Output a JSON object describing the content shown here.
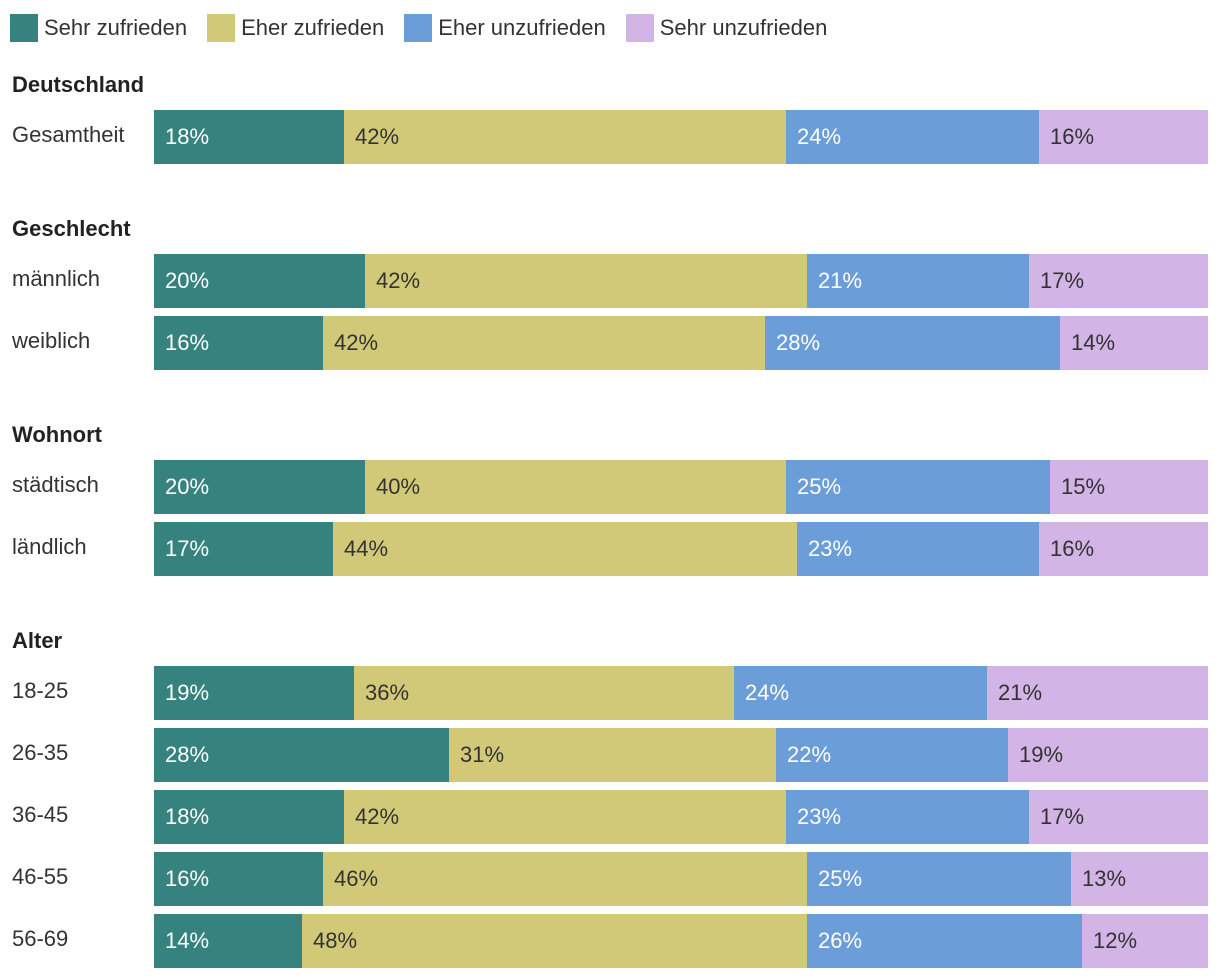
{
  "chart_data": {
    "type": "bar",
    "orientation": "horizontal-stacked-100",
    "legend": [
      {
        "name": "Sehr zufrieden",
        "color": "#35827f",
        "label_color": "#ffffff"
      },
      {
        "name": "Eher zufrieden",
        "color": "#d1c977",
        "label_color": "#333333"
      },
      {
        "name": "Eher unzufrieden",
        "color": "#6b9ed8",
        "label_color": "#ffffff"
      },
      {
        "name": "Sehr unzufrieden",
        "color": "#d2b4e6",
        "label_color": "#333333"
      }
    ],
    "groups": [
      {
        "title": "Deutschland",
        "rows": [
          {
            "label": "Gesamtheit",
            "values": [
              18,
              42,
              24,
              16
            ],
            "labels": [
              "18%",
              "42%",
              "24%",
              "16%"
            ]
          }
        ]
      },
      {
        "title": "Geschlecht",
        "rows": [
          {
            "label": "männlich",
            "values": [
              20,
              42,
              21,
              17
            ],
            "labels": [
              "20%",
              "42%",
              "21%",
              "17%"
            ]
          },
          {
            "label": "weiblich",
            "values": [
              16,
              42,
              28,
              14
            ],
            "labels": [
              "16%",
              "42%",
              "28%",
              "14%"
            ]
          }
        ]
      },
      {
        "title": "Wohnort",
        "rows": [
          {
            "label": "städtisch",
            "values": [
              20,
              40,
              25,
              15
            ],
            "labels": [
              "20%",
              "40%",
              "25%",
              "15%"
            ]
          },
          {
            "label": "ländlich",
            "values": [
              17,
              44,
              23,
              16
            ],
            "labels": [
              "17%",
              "44%",
              "23%",
              "16%"
            ]
          }
        ]
      },
      {
        "title": "Alter",
        "rows": [
          {
            "label": "18-25",
            "values": [
              19,
              36,
              24,
              21
            ],
            "labels": [
              "19%",
              "36%",
              "24%",
              "21%"
            ]
          },
          {
            "label": "26-35",
            "values": [
              28,
              31,
              22,
              19
            ],
            "labels": [
              "28%",
              "31%",
              "22%",
              "19%"
            ]
          },
          {
            "label": "36-45",
            "values": [
              18,
              42,
              23,
              17
            ],
            "labels": [
              "18%",
              "42%",
              "23%",
              "17%"
            ]
          },
          {
            "label": "46-55",
            "values": [
              16,
              46,
              25,
              13
            ],
            "labels": [
              "16%",
              "46%",
              "25%",
              "13%"
            ]
          },
          {
            "label": "56-69",
            "values": [
              14,
              48,
              26,
              12
            ],
            "labels": [
              "14%",
              "48%",
              "26%",
              "12%"
            ]
          }
        ]
      }
    ]
  }
}
